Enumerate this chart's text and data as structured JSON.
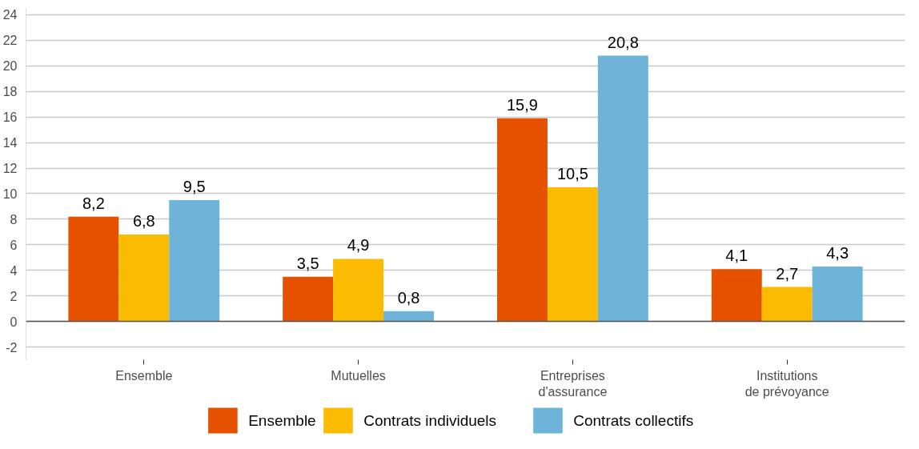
{
  "chart_data": {
    "type": "bar",
    "categories": [
      "Ensemble",
      "Mutuelles",
      "Entreprises\nd'assurance",
      "Institutions\nde prévoyance"
    ],
    "series": [
      {
        "name": "Ensemble",
        "color": "#e65100",
        "values": [
          8.2,
          3.5,
          15.9,
          4.1
        ],
        "value_labels": [
          "8,2",
          "3,5",
          "15,9",
          "4,1"
        ]
      },
      {
        "name": "Contrats individuels",
        "color": "#fbbb00",
        "values": [
          6.8,
          4.9,
          10.5,
          2.7
        ],
        "value_labels": [
          "6,8",
          "4,9",
          "10,5",
          "2,7"
        ]
      },
      {
        "name": "Contrats collectifs",
        "color": "#6eb4d8",
        "values": [
          9.5,
          0.8,
          20.8,
          4.3
        ],
        "value_labels": [
          "9,5",
          "0,8",
          "20,8",
          "4,3"
        ]
      }
    ],
    "ylim": [
      -3,
      24.5
    ],
    "yticks": [
      {
        "value": -2,
        "label": "-2"
      },
      0,
      2,
      4,
      6,
      8,
      10,
      12,
      14,
      16,
      18,
      20,
      22,
      24
    ],
    "ref_lines": [
      {
        "axis": "y",
        "value": 0,
        "label": null,
        "color": "#555555"
      }
    ],
    "grid": "y",
    "legend": "bottom"
  }
}
